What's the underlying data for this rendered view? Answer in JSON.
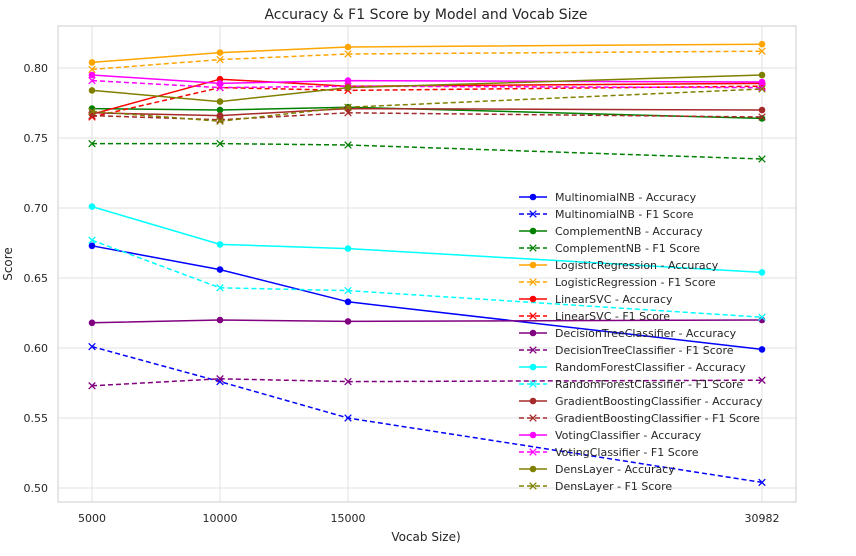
{
  "chart_data": {
    "type": "line",
    "title": "Accuracy & F1 Score by Model and Vocab Size",
    "xlabel": "Vocab Size)",
    "ylabel": "Score",
    "x": [
      5000,
      10000,
      15000,
      30982
    ],
    "x_tick_labels": [
      "5000",
      "10000",
      "15000",
      "30982"
    ],
    "ylim": [
      0.49,
      0.83
    ],
    "y_ticks": [
      0.5,
      0.55,
      0.6,
      0.65,
      0.7,
      0.75,
      0.8
    ],
    "y_tick_labels": [
      "0.50",
      "0.55",
      "0.60",
      "0.65",
      "0.70",
      "0.75",
      "0.80"
    ],
    "grid": true,
    "legend_position": "right",
    "series": [
      {
        "name": "MultinomialNB - Accuracy",
        "color": "#0000ff",
        "style": "solid",
        "marker": "circle",
        "values": [
          0.673,
          0.656,
          0.633,
          0.599
        ]
      },
      {
        "name": "MultinomialNB - F1 Score",
        "color": "#0000ff",
        "style": "dashed",
        "marker": "x",
        "values": [
          0.601,
          0.576,
          0.55,
          0.504
        ]
      },
      {
        "name": "ComplementNB - Accuracy",
        "color": "#008000",
        "style": "solid",
        "marker": "circle",
        "values": [
          0.771,
          0.77,
          0.772,
          0.764
        ]
      },
      {
        "name": "ComplementNB - F1 Score",
        "color": "#008000",
        "style": "dashed",
        "marker": "x",
        "values": [
          0.746,
          0.746,
          0.745,
          0.735
        ]
      },
      {
        "name": "LogisticRegression - Accuracy",
        "color": "#ffa500",
        "style": "solid",
        "marker": "circle",
        "values": [
          0.804,
          0.811,
          0.815,
          0.817
        ]
      },
      {
        "name": "LogisticRegression - F1 Score",
        "color": "#ffa500",
        "style": "dashed",
        "marker": "x",
        "values": [
          0.799,
          0.806,
          0.81,
          0.812
        ]
      },
      {
        "name": "LinearSVC - Accuracy",
        "color": "#ff0000",
        "style": "solid",
        "marker": "circle",
        "values": [
          0.767,
          0.792,
          0.787,
          0.789
        ]
      },
      {
        "name": "LinearSVC - F1 Score",
        "color": "#ff0000",
        "style": "dashed",
        "marker": "x",
        "values": [
          0.765,
          0.786,
          0.784,
          0.787
        ]
      },
      {
        "name": "DecisionTreeClassifier - Accuracy",
        "color": "#800080",
        "style": "solid",
        "marker": "circle",
        "values": [
          0.618,
          0.62,
          0.619,
          0.62
        ]
      },
      {
        "name": "DecisionTreeClassifier - F1 Score",
        "color": "#800080",
        "style": "dashed",
        "marker": "x",
        "values": [
          0.573,
          0.578,
          0.576,
          0.577
        ]
      },
      {
        "name": "RandomForestClassifier - Accuracy",
        "color": "#00ffff",
        "style": "solid",
        "marker": "circle",
        "values": [
          0.701,
          0.674,
          0.671,
          0.654
        ]
      },
      {
        "name": "RandomForestClassifier - F1 Score",
        "color": "#00ffff",
        "style": "dashed",
        "marker": "x",
        "values": [
          0.677,
          0.643,
          0.641,
          0.622
        ]
      },
      {
        "name": "GradientBoostingClassifier - Accuracy",
        "color": "#a52a2a",
        "style": "solid",
        "marker": "circle",
        "values": [
          0.768,
          0.766,
          0.771,
          0.77
        ]
      },
      {
        "name": "GradientBoostingClassifier - F1 Score",
        "color": "#a52a2a",
        "style": "dashed",
        "marker": "x",
        "values": [
          0.766,
          0.763,
          0.768,
          0.765
        ]
      },
      {
        "name": "VotingClassifier - Accuracy",
        "color": "#ff00ff",
        "style": "solid",
        "marker": "circle",
        "values": [
          0.795,
          0.789,
          0.791,
          0.79
        ]
      },
      {
        "name": "VotingClassifier - F1 Score",
        "color": "#ff00ff",
        "style": "dashed",
        "marker": "x",
        "values": [
          0.791,
          0.786,
          0.787,
          0.786
        ]
      },
      {
        "name": "DensLayer - Accuracy",
        "color": "#808000",
        "style": "solid",
        "marker": "circle",
        "values": [
          0.784,
          0.776,
          0.786,
          0.795
        ]
      },
      {
        "name": "DensLayer - F1 Score",
        "color": "#808000",
        "style": "dashed",
        "marker": "x",
        "values": [
          0.769,
          0.762,
          0.772,
          0.785
        ]
      }
    ]
  }
}
